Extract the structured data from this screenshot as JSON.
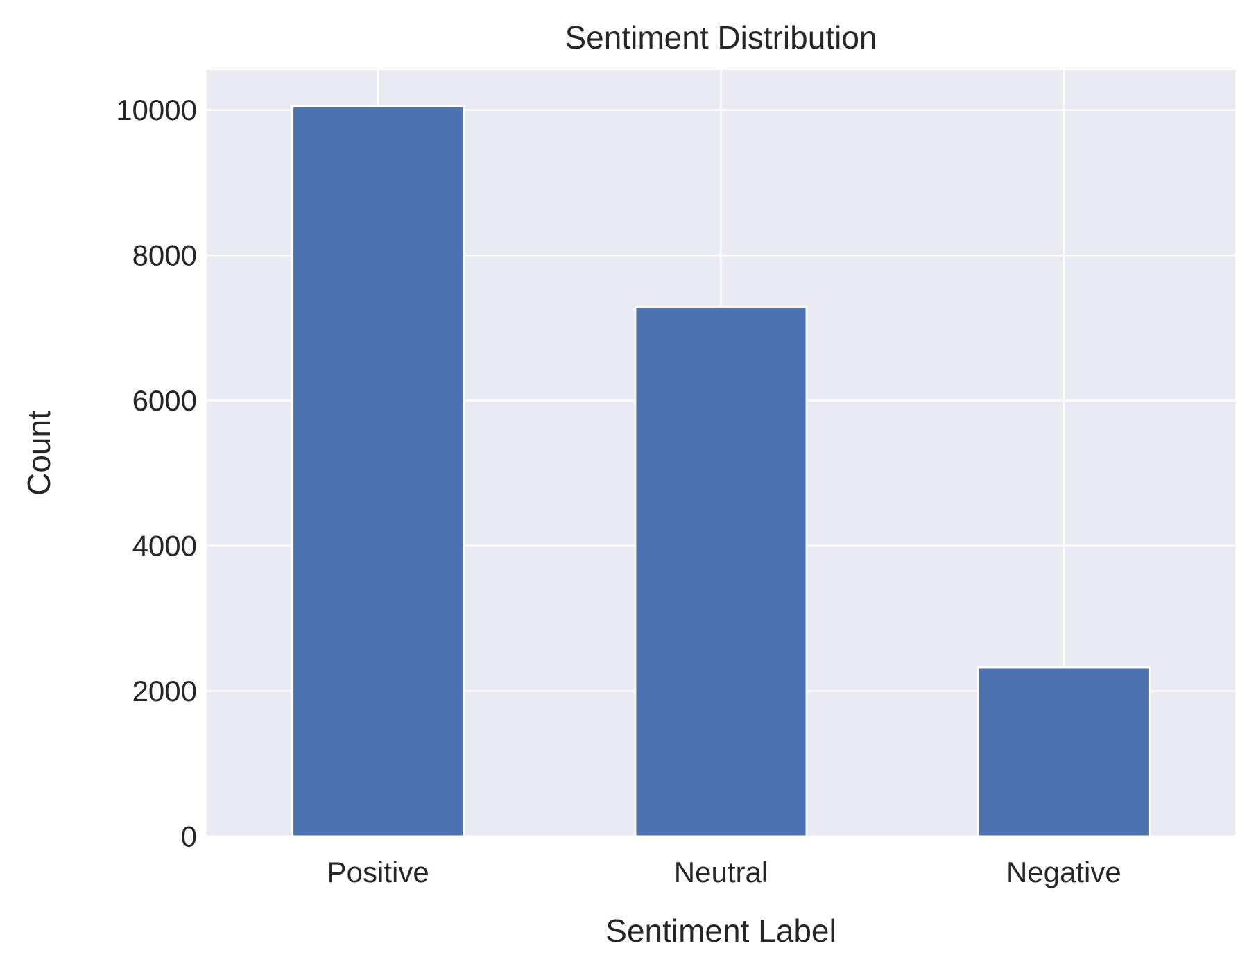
{
  "chart_data": {
    "type": "bar",
    "title": "Sentiment Distribution",
    "xlabel": "Sentiment Label",
    "ylabel": "Count",
    "categories": [
      "Positive",
      "Neutral",
      "Negative"
    ],
    "values": [
      10050,
      7290,
      2330
    ],
    "ylim": [
      0,
      10550
    ],
    "yticks": [
      0,
      2000,
      4000,
      6000,
      8000,
      10000
    ],
    "grid": true,
    "legend": "none",
    "colors": {
      "bar": "#4c72b0",
      "plot_background": "#eaeaf2",
      "grid": "#ffffff",
      "text": "#262626"
    }
  }
}
